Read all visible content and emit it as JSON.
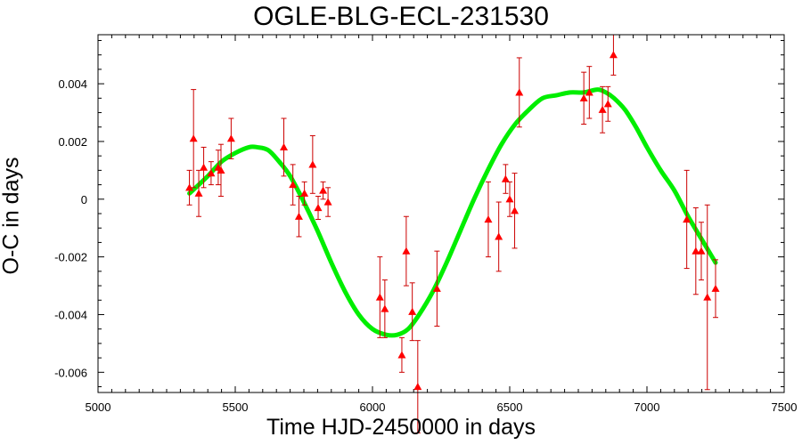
{
  "chart_data": {
    "type": "scatter",
    "title": "OGLE-BLG-ECL-231530",
    "xlabel": "Time HJD-2450000 in days",
    "ylabel": "O-C in days",
    "xlim": [
      5000,
      7500
    ],
    "ylim": [
      -0.0067,
      0.0057
    ],
    "xticks": [
      5000,
      5500,
      6000,
      6500,
      7000,
      7500
    ],
    "xtick_labels": [
      "5000",
      "5500",
      "6000",
      "6500",
      "7000",
      "7500"
    ],
    "yticks": [
      -0.006,
      -0.004,
      -0.002,
      0,
      0.002,
      0.004
    ],
    "ytick_labels": [
      "-0.006",
      "-0.004",
      "-0.002",
      "0",
      "0.002",
      "0.004"
    ],
    "grid": false,
    "legend": "none",
    "colors": {
      "points": "#ff0000",
      "errorbars": "#cc0000",
      "fit": "#00ee00"
    },
    "series": [
      {
        "kind": "points_with_errorbars",
        "points": [
          {
            "x": 5333,
            "y": 0.0004,
            "err": 0.0006
          },
          {
            "x": 5348,
            "y": 0.0021,
            "err": 0.0017
          },
          {
            "x": 5367,
            "y": 0.0002,
            "err": 0.0008
          },
          {
            "x": 5385,
            "y": 0.0011,
            "err": 0.0007
          },
          {
            "x": 5412,
            "y": 0.0009,
            "err": 0.0004
          },
          {
            "x": 5438,
            "y": 0.0011,
            "err": 0.0006
          },
          {
            "x": 5448,
            "y": 0.001,
            "err": 0.0009
          },
          {
            "x": 5485,
            "y": 0.0021,
            "err": 0.0007
          },
          {
            "x": 5677,
            "y": 0.0018,
            "err": 0.001
          },
          {
            "x": 5710,
            "y": 0.0005,
            "err": 0.0007
          },
          {
            "x": 5732,
            "y": -0.0006,
            "err": 0.0007
          },
          {
            "x": 5752,
            "y": 0.0002,
            "err": 0.0004
          },
          {
            "x": 5782,
            "y": 0.0012,
            "err": 0.001
          },
          {
            "x": 5802,
            "y": -0.0003,
            "err": 0.0004
          },
          {
            "x": 5820,
            "y": 0.0003,
            "err": 0.0003
          },
          {
            "x": 5838,
            "y": -0.0001,
            "err": 0.0005
          },
          {
            "x": 6027,
            "y": -0.0034,
            "err": 0.0014
          },
          {
            "x": 6045,
            "y": -0.0038,
            "err": 0.001
          },
          {
            "x": 6107,
            "y": -0.0054,
            "err": 0.0006
          },
          {
            "x": 6123,
            "y": -0.0018,
            "err": 0.0012
          },
          {
            "x": 6145,
            "y": -0.0039,
            "err": 0.001
          },
          {
            "x": 6165,
            "y": -0.0065,
            "err": 0.0016
          },
          {
            "x": 6235,
            "y": -0.0031,
            "err": 0.0013
          },
          {
            "x": 6422,
            "y": -0.0007,
            "err": 0.0013
          },
          {
            "x": 6460,
            "y": -0.0013,
            "err": 0.0012
          },
          {
            "x": 6485,
            "y": 0.0007,
            "err": 0.0005
          },
          {
            "x": 6500,
            "y": 0.0,
            "err": 0.0006
          },
          {
            "x": 6518,
            "y": -0.0004,
            "err": 0.0013
          },
          {
            "x": 6535,
            "y": 0.0037,
            "err": 0.0012
          },
          {
            "x": 6770,
            "y": 0.0035,
            "err": 0.0009
          },
          {
            "x": 6790,
            "y": 0.0037,
            "err": 0.0009
          },
          {
            "x": 6838,
            "y": 0.0031,
            "err": 0.0008
          },
          {
            "x": 6858,
            "y": 0.0033,
            "err": 0.0006
          },
          {
            "x": 6878,
            "y": 0.005,
            "err": 0.0007
          },
          {
            "x": 7145,
            "y": -0.0007,
            "err": 0.0017
          },
          {
            "x": 7178,
            "y": -0.0018,
            "err": 0.0015
          },
          {
            "x": 7198,
            "y": -0.0018,
            "err": 0.001
          },
          {
            "x": 7220,
            "y": -0.0034,
            "err": 0.0032
          },
          {
            "x": 7250,
            "y": -0.0031,
            "err": 0.001
          }
        ]
      },
      {
        "kind": "fit_line",
        "x": [
          5333,
          5400,
          5450,
          5500,
          5550,
          5580,
          5620,
          5660,
          5700,
          5750,
          5800,
          5850,
          5900,
          5950,
          6000,
          6050,
          6090,
          6130,
          6170,
          6220,
          6270,
          6320,
          6370,
          6420,
          6470,
          6520,
          6570,
          6620,
          6670,
          6720,
          6770,
          6820,
          6850,
          6880,
          6920,
          6960,
          7000,
          7050,
          7100,
          7150,
          7200,
          7250
        ],
        "y": [
          0.0002,
          0.0008,
          0.0013,
          0.0016,
          0.0018,
          0.0018,
          0.0017,
          0.0013,
          0.0008,
          -0.0001,
          -0.0011,
          -0.0022,
          -0.0032,
          -0.004,
          -0.0045,
          -0.0047,
          -0.0047,
          -0.0045,
          -0.004,
          -0.0032,
          -0.0022,
          -0.0011,
          0.0,
          0.001,
          0.0019,
          0.0026,
          0.0031,
          0.0035,
          0.0036,
          0.0037,
          0.0037,
          0.0038,
          0.0037,
          0.0035,
          0.0031,
          0.0025,
          0.0018,
          0.001,
          0.0003,
          -0.0006,
          -0.0014,
          -0.0022
        ]
      }
    ]
  }
}
